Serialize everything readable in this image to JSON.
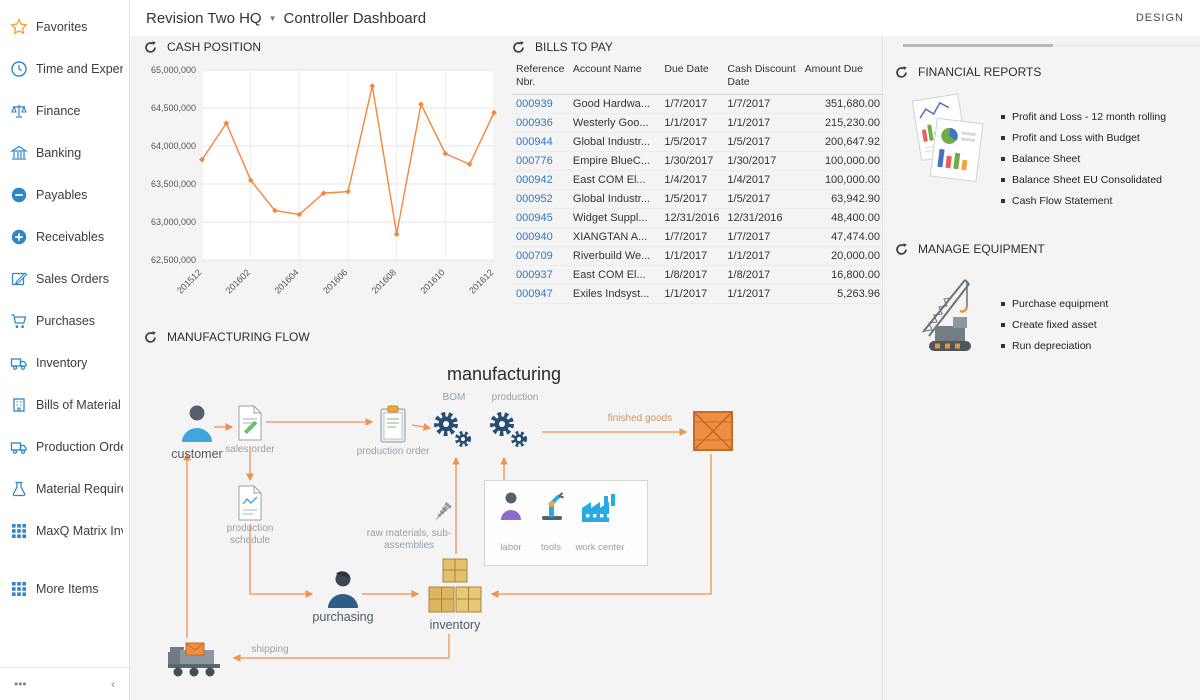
{
  "header": {
    "company": "Revision Two HQ",
    "page_title": "Controller Dashboard",
    "design_label": "DESIGN"
  },
  "sidebar": {
    "items": [
      {
        "id": "favorites",
        "label": "Favorites",
        "icon": "star"
      },
      {
        "id": "time-and-expenses",
        "label": "Time and Expenses",
        "icon": "clock"
      },
      {
        "id": "finance",
        "label": "Finance",
        "icon": "scales"
      },
      {
        "id": "banking",
        "label": "Banking",
        "icon": "bank"
      },
      {
        "id": "payables",
        "label": "Payables",
        "icon": "minus-circle"
      },
      {
        "id": "receivables",
        "label": "Receivables",
        "icon": "plus-circle"
      },
      {
        "id": "sales-orders",
        "label": "Sales Orders",
        "icon": "edit"
      },
      {
        "id": "purchases",
        "label": "Purchases",
        "icon": "cart"
      },
      {
        "id": "inventory",
        "label": "Inventory",
        "icon": "truck"
      },
      {
        "id": "bills-of-material",
        "label": "Bills of Material",
        "icon": "building"
      },
      {
        "id": "production-orders",
        "label": "Production Orders",
        "icon": "truck"
      },
      {
        "id": "material-requirements",
        "label": "Material Requirem...",
        "icon": "flask"
      },
      {
        "id": "maxq-matrix-inventory",
        "label": "MaxQ Matrix Invent...",
        "icon": "grid"
      },
      {
        "id": "more-items",
        "label": "More Items",
        "icon": "grid",
        "gap": true
      }
    ],
    "more_button": "•••",
    "collapse_button": "‹"
  },
  "cash_position": {
    "title": "CASH POSITION",
    "chart_data": {
      "type": "line",
      "x": [
        "201512",
        "201601",
        "201602",
        "201603",
        "201604",
        "201605",
        "201606",
        "201607",
        "201608",
        "201609",
        "201610",
        "201611",
        "201612"
      ],
      "values": [
        63820000,
        64300000,
        63550000,
        63150000,
        63100000,
        63380000,
        63400000,
        64790000,
        62840000,
        64550000,
        63900000,
        63760000,
        64440000
      ],
      "x_tick_labels": [
        "201512",
        "201602",
        "201604",
        "201606",
        "201608",
        "201610",
        "201612"
      ],
      "ylim": [
        62500000,
        65000000
      ],
      "y_tick_step": 500000,
      "line_color": "#f6863c",
      "grid": true,
      "title": "CASH POSITION",
      "xlabel": "",
      "ylabel": ""
    }
  },
  "bills_to_pay": {
    "title": "BILLS TO PAY",
    "columns": [
      "Reference Nbr.",
      "Account Name",
      "Due Date",
      "Cash Discount Date",
      "Amount Due"
    ],
    "rows": [
      {
        "ref": "000939",
        "account": "Good Hardwa...",
        "due_date": "1/7/2017",
        "discount_date": "1/7/2017",
        "amount": "351,680.00"
      },
      {
        "ref": "000936",
        "account": "Westerly Goo...",
        "due_date": "1/1/2017",
        "discount_date": "1/1/2017",
        "amount": "215,230.00"
      },
      {
        "ref": "000944",
        "account": "Global Industr...",
        "due_date": "1/5/2017",
        "discount_date": "1/5/2017",
        "amount": "200,647.92"
      },
      {
        "ref": "000776",
        "account": "Empire BlueC...",
        "due_date": "1/30/2017",
        "discount_date": "1/30/2017",
        "amount": "100,000.00"
      },
      {
        "ref": "000942",
        "account": "East COM El...",
        "due_date": "1/4/2017",
        "discount_date": "1/4/2017",
        "amount": "100,000.00"
      },
      {
        "ref": "000952",
        "account": "Global Industr...",
        "due_date": "1/5/2017",
        "discount_date": "1/5/2017",
        "amount": "63,942.90"
      },
      {
        "ref": "000945",
        "account": "Widget Suppl...",
        "due_date": "12/31/2016",
        "discount_date": "12/31/2016",
        "amount": "48,400.00"
      },
      {
        "ref": "000940",
        "account": "XIANGTAN A...",
        "due_date": "1/7/2017",
        "discount_date": "1/7/2017",
        "amount": "47,474.00"
      },
      {
        "ref": "000709",
        "account": "Riverbuild We...",
        "due_date": "1/1/2017",
        "discount_date": "1/1/2017",
        "amount": "20,000.00"
      },
      {
        "ref": "000937",
        "account": "East COM El...",
        "due_date": "1/8/2017",
        "discount_date": "1/8/2017",
        "amount": "16,800.00"
      },
      {
        "ref": "000947",
        "account": "Exiles Indsyst...",
        "due_date": "1/1/2017",
        "discount_date": "1/1/2017",
        "amount": "5,263.96"
      }
    ]
  },
  "financial_reports": {
    "title": "FINANCIAL REPORTS",
    "links": [
      "Profit and Loss - 12 month rolling",
      "Profit and Loss with Budget",
      "Balance Sheet",
      "Balance Sheet EU Consolidated",
      "Cash Flow Statement"
    ]
  },
  "manage_equipment": {
    "title": "MANAGE EQUIPMENT",
    "links": [
      "Purchase equipment",
      "Create fixed asset",
      "Run depreciation"
    ]
  },
  "manufacturing_flow": {
    "title": "MANUFACTURING FLOW",
    "labels": {
      "manufacturing": "manufacturing",
      "bom": "BOM",
      "production": "production",
      "customer": "customer",
      "sales_order": "sales order",
      "production_order": "production order",
      "production_schedule": "production schedule",
      "finished_goods": "finished goods",
      "raw_materials": "raw materials, sub-assemblies",
      "labor": "labor",
      "tools": "tools",
      "work_center": "work center",
      "purchasing": "purchasing",
      "inventory": "inventory",
      "shipping": "shipping"
    }
  }
}
